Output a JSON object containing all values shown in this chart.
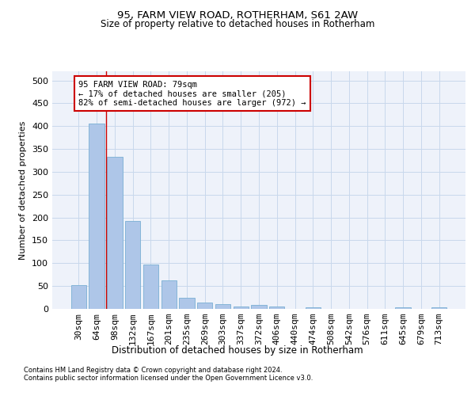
{
  "title": "95, FARM VIEW ROAD, ROTHERHAM, S61 2AW",
  "subtitle": "Size of property relative to detached houses in Rotherham",
  "xlabel": "Distribution of detached houses by size in Rotherham",
  "ylabel": "Number of detached properties",
  "bar_color": "#aec6e8",
  "bar_edge_color": "#7aafd4",
  "grid_color": "#c8d8ec",
  "background_color": "#eef2fa",
  "categories": [
    "30sqm",
    "64sqm",
    "98sqm",
    "132sqm",
    "167sqm",
    "201sqm",
    "235sqm",
    "269sqm",
    "303sqm",
    "337sqm",
    "372sqm",
    "406sqm",
    "440sqm",
    "474sqm",
    "508sqm",
    "542sqm",
    "576sqm",
    "611sqm",
    "645sqm",
    "679sqm",
    "713sqm"
  ],
  "values": [
    52,
    406,
    332,
    193,
    97,
    62,
    25,
    14,
    11,
    6,
    9,
    5,
    0,
    4,
    0,
    0,
    0,
    0,
    4,
    0,
    3
  ],
  "vline_x": 1.5,
  "vline_color": "#cc0000",
  "annotation_text": "95 FARM VIEW ROAD: 79sqm\n← 17% of detached houses are smaller (205)\n82% of semi-detached houses are larger (972) →",
  "annotation_box_color": "#ffffff",
  "annotation_box_edge": "#cc0000",
  "ylim": [
    0,
    520
  ],
  "yticks": [
    0,
    50,
    100,
    150,
    200,
    250,
    300,
    350,
    400,
    450,
    500
  ],
  "footer1": "Contains HM Land Registry data © Crown copyright and database right 2024.",
  "footer2": "Contains public sector information licensed under the Open Government Licence v3.0."
}
